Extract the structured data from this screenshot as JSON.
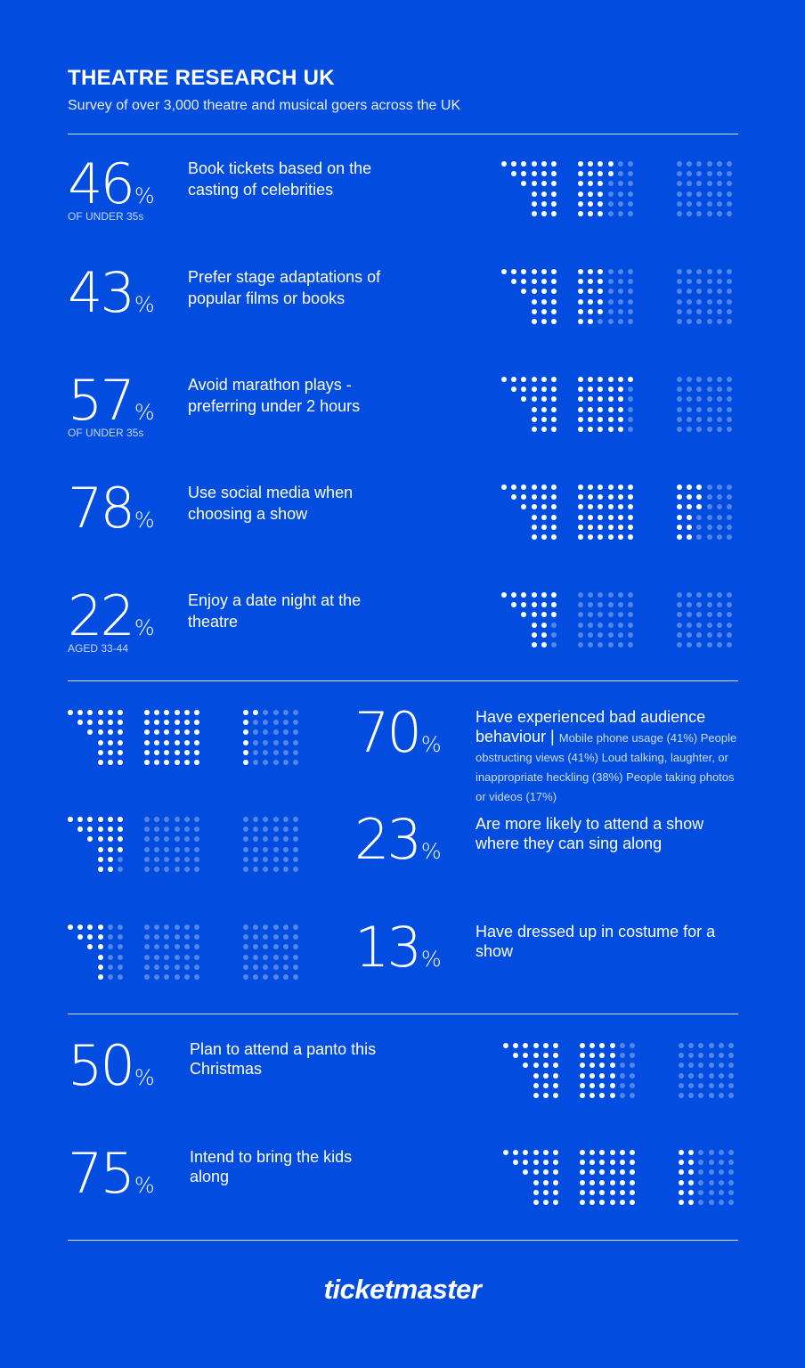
{
  "header": {
    "title": "THEATRE RESEARCH UK",
    "subtitle": "Survey of over 3,000 theatre and musical goers across the UK"
  },
  "chart_data": {
    "type": "pictogram",
    "title": "THEATRE RESEARCH UK",
    "subtitle": "Survey of over 3,000 theatre and musical goers across the UK",
    "percent_symbol": "%",
    "dot_scale": "each group of three seating blocks represents 100%",
    "stats": [
      {
        "value": 46,
        "qualifier": "OF UNDER 35s",
        "label": "Book tickets based on the casting of celebrities",
        "detail": ""
      },
      {
        "value": 43,
        "qualifier": "",
        "label": "Prefer stage adaptations of popular films or books",
        "detail": ""
      },
      {
        "value": 57,
        "qualifier": "OF UNDER 35s",
        "label": "Avoid marathon plays - preferring under 2 hours",
        "detail": ""
      },
      {
        "value": 78,
        "qualifier": "",
        "label": "Use social media when choosing a show",
        "detail": ""
      },
      {
        "value": 22,
        "qualifier": "AGED 33-44",
        "label": "Enjoy a date night at the theatre",
        "detail": ""
      },
      {
        "value": 70,
        "qualifier": "",
        "label": "Have experienced bad audience behaviour |",
        "detail": "Mobile phone usage (41%) People obstructing views (41%) Loud talking, laughter, or inappropriate heckling (38%) People taking photos or videos (17%)"
      },
      {
        "value": 23,
        "qualifier": "",
        "label": "Are more likely to attend a show where they can sing along",
        "detail": ""
      },
      {
        "value": 13,
        "qualifier": "",
        "label": "Have dressed up in costume for a show",
        "detail": ""
      },
      {
        "value": 50,
        "qualifier": "",
        "label": "Plan to attend a panto this Christmas",
        "detail": ""
      },
      {
        "value": 75,
        "qualifier": "",
        "label": "Intend to bring the kids along",
        "detail": ""
      }
    ]
  },
  "footer": {
    "brand": "ticketmaster"
  },
  "colors": {
    "background": "#024ddf",
    "dot_filled": "#ffffff",
    "dot_empty": "rgba(255,255,255,0.32)"
  }
}
